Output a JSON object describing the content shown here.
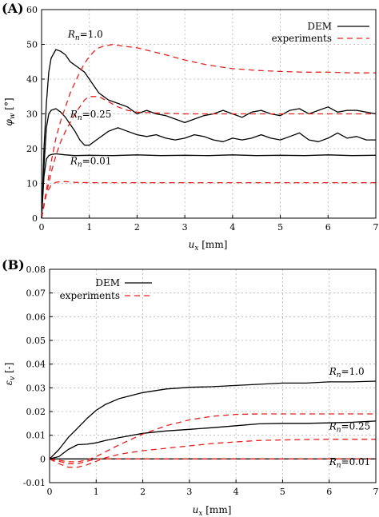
{
  "figure": {
    "panels": [
      "(A)",
      "(B)"
    ]
  },
  "chart_data": [
    {
      "type": "line",
      "panel": "(A)",
      "xlabel_sym": "u",
      "xlabel_sub": "x",
      "xlabel_unit": " [mm]",
      "ylabel_sym": "φ",
      "ylabel_sub": "w",
      "ylabel_unit": " [°]",
      "xlim": [
        0,
        7
      ],
      "ylim": [
        0,
        60
      ],
      "xticks": [
        0,
        1,
        2,
        3,
        4,
        5,
        6,
        7
      ],
      "yticks": [
        0,
        10,
        20,
        30,
        40,
        50,
        60
      ],
      "grid": true,
      "legend": {
        "position": "top-right",
        "entries": [
          "DEM",
          "experiments"
        ]
      },
      "annotations": [
        {
          "label_sym": "R",
          "label_sub": "n",
          "label_val": "=1.0",
          "x": 0.55,
          "y": 52
        },
        {
          "label_sym": "R",
          "label_sub": "n",
          "label_val": "=0.25",
          "x": 0.6,
          "y": 29
        },
        {
          "label_sym": "R",
          "label_sub": "n",
          "label_val": "=0.01",
          "x": 0.6,
          "y": 15.5
        }
      ],
      "series": [
        {
          "name": "DEM",
          "style": "solid",
          "color": "#000000",
          "x": [
            0,
            0.05,
            0.1,
            0.15,
            0.2,
            0.3,
            0.4,
            0.5,
            0.6,
            0.7,
            0.8,
            0.9,
            1.0,
            1.1,
            1.2,
            1.4,
            1.6,
            1.8,
            2.0,
            2.2,
            2.4,
            2.6,
            2.8,
            3.0,
            3.2,
            3.4,
            3.6,
            3.8,
            4.0,
            4.2,
            4.4,
            4.6,
            4.8,
            5.0,
            5.2,
            5.4,
            5.6,
            5.8,
            6.0,
            6.2,
            6.4,
            6.6,
            6.8,
            7.0
          ],
          "y": [
            0,
            20,
            33,
            42,
            46,
            48.5,
            48,
            47,
            45,
            44,
            43,
            42,
            40,
            38,
            36,
            34,
            33,
            32,
            30,
            31,
            30,
            29.5,
            28.5,
            27.5,
            28.5,
            29.5,
            30,
            31,
            30,
            29,
            30.5,
            31,
            30,
            29.5,
            31,
            31.5,
            30,
            31,
            32,
            30.5,
            31,
            31,
            30.5,
            30
          ]
        },
        {
          "name": "DEM",
          "style": "solid",
          "color": "#000000",
          "x": [
            0,
            0.05,
            0.1,
            0.15,
            0.2,
            0.3,
            0.4,
            0.5,
            0.6,
            0.7,
            0.8,
            0.9,
            1.0,
            1.2,
            1.4,
            1.6,
            1.8,
            2.0,
            2.2,
            2.4,
            2.6,
            2.8,
            3.0,
            3.2,
            3.4,
            3.6,
            3.8,
            4.0,
            4.2,
            4.4,
            4.6,
            4.8,
            5.0,
            5.2,
            5.4,
            5.6,
            5.8,
            6.0,
            6.2,
            6.4,
            6.6,
            6.8,
            7.0
          ],
          "y": [
            0,
            15,
            26,
            30,
            31,
            31.5,
            30.5,
            29,
            27,
            25,
            22.5,
            21,
            21,
            23,
            25,
            26,
            25,
            24,
            23.5,
            24,
            23,
            22.5,
            23,
            24,
            23.5,
            22.5,
            22,
            23,
            22.5,
            23,
            24,
            23,
            22.5,
            23.5,
            24.5,
            22.5,
            22,
            23,
            24.5,
            23,
            23.5,
            22.5,
            22.5
          ]
        },
        {
          "name": "DEM",
          "style": "solid",
          "color": "#000000",
          "x": [
            0,
            0.05,
            0.1,
            0.15,
            0.2,
            0.3,
            0.5,
            0.7,
            1.0,
            1.5,
            2.0,
            2.5,
            3.0,
            3.5,
            4.0,
            4.5,
            5.0,
            5.5,
            6.0,
            6.5,
            7.0
          ],
          "y": [
            0,
            12,
            17,
            18,
            18.3,
            18.5,
            18.2,
            18,
            18.1,
            18,
            18.2,
            18,
            18.1,
            18,
            18.2,
            18,
            18.1,
            18,
            18.2,
            18,
            18.1
          ]
        },
        {
          "name": "experiments",
          "style": "dashed",
          "color": "#e8201e",
          "x": [
            0,
            0.1,
            0.2,
            0.3,
            0.4,
            0.5,
            0.6,
            0.7,
            0.8,
            0.9,
            1.0,
            1.1,
            1.2,
            1.3,
            1.5,
            1.7,
            2.0,
            2.3,
            2.6,
            3.0,
            3.5,
            4.0,
            4.5,
            5.0,
            5.5,
            6.0,
            6.5,
            7.0
          ],
          "y": [
            0,
            8,
            16,
            23,
            28,
            32,
            36,
            39,
            42,
            44.5,
            46.5,
            48,
            49,
            49.5,
            50,
            49.5,
            49,
            48,
            47,
            45.5,
            44,
            43,
            42.5,
            42.2,
            42,
            42,
            41.8,
            41.8
          ]
        },
        {
          "name": "experiments",
          "style": "dashed",
          "color": "#e8201e",
          "x": [
            0,
            0.1,
            0.2,
            0.3,
            0.4,
            0.5,
            0.6,
            0.7,
            0.8,
            0.9,
            1.0,
            1.2,
            1.4,
            1.6,
            1.8,
            2.0,
            2.5,
            3.0,
            3.5,
            4.0,
            5.0,
            6.0,
            7.0
          ],
          "y": [
            0,
            7,
            13,
            18,
            22,
            25,
            27.5,
            30,
            32,
            34,
            35,
            35,
            33.5,
            32,
            31,
            30.5,
            30.2,
            30,
            30,
            30,
            30,
            30,
            30
          ]
        },
        {
          "name": "experiments",
          "style": "dashed",
          "color": "#e8201e",
          "x": [
            0,
            0.05,
            0.1,
            0.2,
            0.3,
            0.4,
            0.5,
            0.7,
            1.0,
            1.5,
            2.0,
            3.0,
            4.0,
            5.0,
            6.0,
            7.0
          ],
          "y": [
            0,
            4,
            7,
            9.5,
            10.3,
            10.5,
            10.5,
            10.3,
            10.2,
            10.2,
            10.2,
            10.2,
            10.2,
            10.2,
            10.2,
            10.2
          ]
        }
      ]
    },
    {
      "type": "line",
      "panel": "(B)",
      "xlabel_sym": "u",
      "xlabel_sub": "x",
      "xlabel_unit": " [mm]",
      "ylabel_sym": "ε",
      "ylabel_sub": "v",
      "ylabel_unit": " [-]",
      "xlim": [
        0,
        7
      ],
      "ylim": [
        -0.01,
        0.08
      ],
      "xticks": [
        0,
        1,
        2,
        3,
        4,
        5,
        6,
        7
      ],
      "yticks": [
        -0.01,
        0,
        0.01,
        0.02,
        0.03,
        0.04,
        0.05,
        0.06,
        0.07,
        0.08
      ],
      "ytick_labels": [
        "-0.01",
        "0",
        "0.01",
        "0.02",
        "0.03",
        "0.04",
        "0.05",
        "0.06",
        "0.07",
        "0.08"
      ],
      "grid": true,
      "legend": {
        "position": "top-left",
        "entries": [
          "DEM",
          "experiments"
        ]
      },
      "annotations": [
        {
          "label_sym": "R",
          "label_sub": "n",
          "label_val": "=1.0",
          "x": 6.0,
          "y": 0.0355
        },
        {
          "label_sym": "R",
          "label_sub": "n",
          "label_val": "=0.25",
          "x": 6.0,
          "y": 0.0125
        },
        {
          "label_sym": "R",
          "label_sub": "n",
          "label_val": "=0.01",
          "x": 6.0,
          "y": -0.0025
        }
      ],
      "series": [
        {
          "name": "DEM",
          "style": "solid",
          "color": "#000000",
          "x": [
            0,
            0.2,
            0.4,
            0.6,
            0.8,
            1.0,
            1.2,
            1.5,
            2.0,
            2.5,
            3.0,
            3.5,
            4.0,
            4.5,
            5.0,
            5.5,
            6.0,
            6.5,
            7.0
          ],
          "y": [
            0,
            0.004,
            0.009,
            0.013,
            0.017,
            0.0205,
            0.023,
            0.0255,
            0.028,
            0.0295,
            0.0302,
            0.0305,
            0.031,
            0.0315,
            0.032,
            0.032,
            0.0325,
            0.0325,
            0.0328
          ]
        },
        {
          "name": "DEM",
          "style": "solid",
          "color": "#000000",
          "x": [
            0,
            0.2,
            0.4,
            0.6,
            0.8,
            1.0,
            1.2,
            1.5,
            2.0,
            2.5,
            3.0,
            3.5,
            4.0,
            4.5,
            5.0,
            5.5,
            6.0,
            6.5,
            7.0
          ],
          "y": [
            0,
            0.001,
            0.004,
            0.006,
            0.0062,
            0.0068,
            0.0078,
            0.009,
            0.0108,
            0.0118,
            0.0125,
            0.0132,
            0.014,
            0.0148,
            0.015,
            0.015,
            0.0152,
            0.0155,
            0.016
          ]
        },
        {
          "name": "DEM",
          "style": "solid",
          "color": "#000000",
          "x": [
            0,
            1,
            2,
            3,
            4,
            5,
            6,
            7
          ],
          "y": [
            0,
            0,
            0,
            0,
            0,
            0,
            0,
            0
          ]
        },
        {
          "name": "experiments",
          "style": "dashed",
          "color": "#e8201e",
          "x": [
            0,
            0.2,
            0.4,
            0.6,
            0.8,
            1.0,
            1.2,
            1.5,
            2.0,
            2.5,
            3.0,
            3.5,
            4.0,
            4.5,
            5.0,
            5.5,
            6.0,
            6.5,
            7.0
          ],
          "y": [
            0,
            -0.0005,
            -0.0012,
            -0.0012,
            -0.0005,
            0.001,
            0.003,
            0.006,
            0.0105,
            0.014,
            0.0165,
            0.018,
            0.0188,
            0.019,
            0.019,
            0.019,
            0.019,
            0.019,
            0.019
          ]
        },
        {
          "name": "experiments",
          "style": "dashed",
          "color": "#e8201e",
          "x": [
            0,
            0.2,
            0.4,
            0.6,
            0.8,
            1.0,
            1.2,
            1.5,
            2.0,
            2.5,
            3.0,
            3.5,
            4.0,
            4.5,
            5.0,
            5.5,
            6.0,
            6.5,
            7.0
          ],
          "y": [
            0,
            -0.002,
            -0.0035,
            -0.0035,
            -0.0025,
            -0.001,
            0.0005,
            0.002,
            0.0035,
            0.0045,
            0.0055,
            0.0065,
            0.0072,
            0.0078,
            0.008,
            0.0082,
            0.0083,
            0.0083,
            0.0083
          ]
        },
        {
          "name": "experiments",
          "style": "dashed",
          "color": "#e8201e",
          "x": [
            0,
            0.2,
            0.4,
            0.6,
            0.8,
            1.0,
            1.5,
            2.0,
            3.0,
            4.0,
            5.0,
            6.0,
            7.0
          ],
          "y": [
            0,
            -0.001,
            -0.002,
            -0.002,
            -0.001,
            0,
            0,
            0,
            0,
            0,
            0,
            0,
            0
          ]
        }
      ]
    }
  ]
}
